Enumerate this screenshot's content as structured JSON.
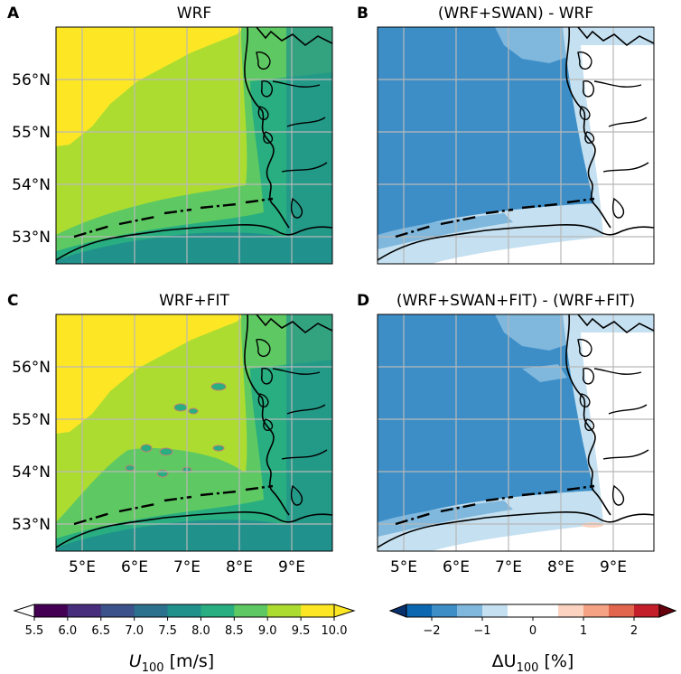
{
  "panels": [
    {
      "letter": "A",
      "title": "WRF",
      "variable": "U100"
    },
    {
      "letter": "B",
      "title": "(WRF+SWAN) - WRF",
      "variable": "dU100"
    },
    {
      "letter": "C",
      "title": "WRF+FIT",
      "variable": "U100"
    },
    {
      "letter": "D",
      "title": "(WRF+SWAN+FIT) - (WRF+FIT)",
      "variable": "dU100"
    }
  ],
  "axes": {
    "lat_labels": [
      "56°N",
      "55°N",
      "54°N",
      "53°N"
    ],
    "lon_labels": [
      "5°E",
      "6°E",
      "7°E",
      "8°E",
      "9°E"
    ]
  },
  "colorbars": {
    "wind": {
      "label_main": "U",
      "label_sub": "100",
      "label_unit": " [m/s]",
      "ticks": [
        "5.5",
        "6.0",
        "6.5",
        "7.0",
        "7.5",
        "8.0",
        "8.5",
        "9.0",
        "9.5",
        "10.0"
      ],
      "colors": [
        "#440154",
        "#472d7b",
        "#3b528b",
        "#2c728e",
        "#21918c",
        "#28ae80",
        "#5ec962",
        "#addc30",
        "#fde725"
      ],
      "extend": "both"
    },
    "diff": {
      "label_pre": "ΔU",
      "label_sub": "100",
      "label_unit": " [%]",
      "ticks": [
        "−2",
        "−1",
        "0",
        "1",
        "2"
      ],
      "colors": [
        "#0b67b0",
        "#3d8ec7",
        "#7fb7dd",
        "#c5e0f0",
        "#ffffff",
        "#ffffff",
        "#fbd3c0",
        "#f4a283",
        "#e2654e",
        "#c41e2a"
      ],
      "extend": "both"
    }
  },
  "colors": {
    "yellow": "#fde725",
    "lightgreen": "#addc30",
    "green": "#5ec962",
    "teal": "#28ae80",
    "darkteal": "#21918c",
    "blue1": "#3d8ec7",
    "blue2": "#7fb7dd",
    "blue3": "#c5e0f0"
  }
}
